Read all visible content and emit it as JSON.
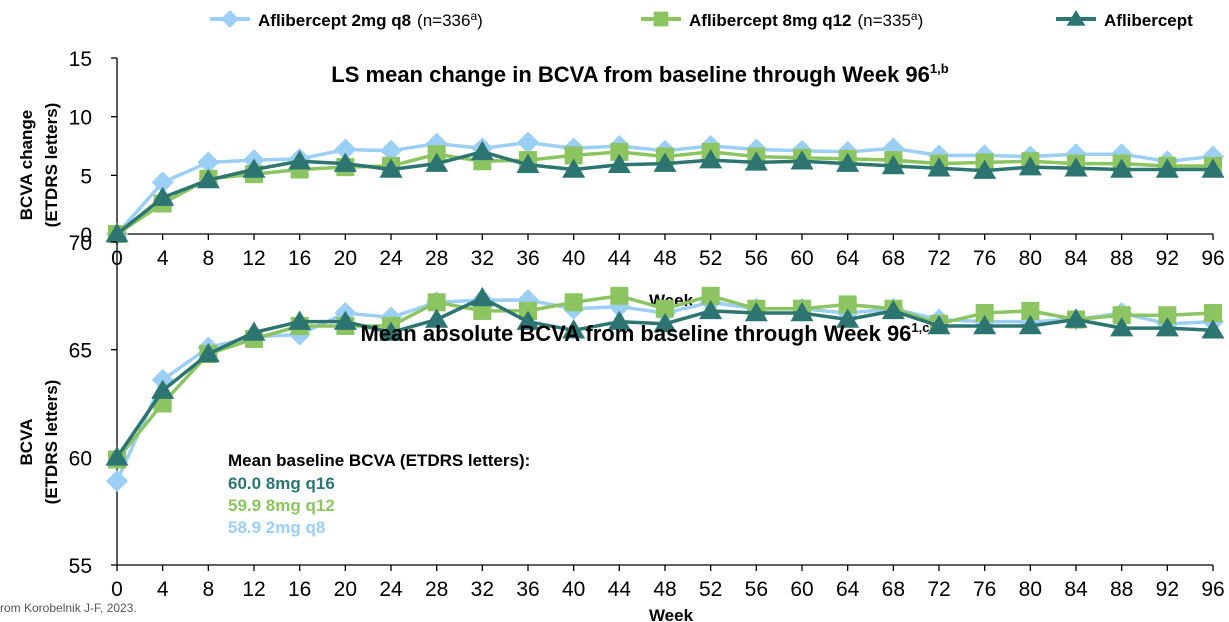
{
  "colors": {
    "q8": "#9CCFF5",
    "q12": "#8DC462",
    "q16": "#2D7570",
    "axis": "#000000",
    "text": "#000000"
  },
  "legend": [
    {
      "label": "Aflibercept 2mg q8",
      "n": "(n=336",
      "sup": "a",
      "close": ")",
      "marker": "diamond",
      "color_key": "q8"
    },
    {
      "label": "Aflibercept 8mg q12",
      "n": "(n=335",
      "sup": "a",
      "close": ")",
      "marker": "square",
      "color_key": "q12"
    },
    {
      "label": "Aflibercept",
      "n": "",
      "sup": "",
      "close": "",
      "marker": "triangle",
      "color_key": "q16"
    }
  ],
  "source_note": "rom Korobelnik J-F, 2023.",
  "annotation": {
    "heading": "Mean baseline BCVA (ETDRS letters):",
    "lines": [
      {
        "text": "60.0 8mg q16",
        "color_key": "q16"
      },
      {
        "text": "59.9 8mg q12",
        "color_key": "q12"
      },
      {
        "text": "58.9 2mg q8",
        "color_key": "q8"
      }
    ]
  },
  "chart_data": [
    {
      "type": "line",
      "title": "LS mean change in BCVA from baseline through Week 96",
      "title_sup": "1,b",
      "xlabel": "Week",
      "ylabel": [
        "BCVA change",
        "(ETDRS letters)"
      ],
      "ylim": [
        0,
        15
      ],
      "yticks": [
        0,
        5,
        10,
        15
      ],
      "grid": false,
      "legend_position": "top",
      "x": [
        0,
        4,
        8,
        12,
        16,
        20,
        24,
        28,
        32,
        36,
        40,
        44,
        48,
        52,
        56,
        60,
        64,
        68,
        72,
        76,
        80,
        84,
        88,
        92,
        96
      ],
      "series": [
        {
          "name": "Aflibercept 2mg q8",
          "color_key": "q8",
          "marker": "diamond",
          "values": [
            0,
            4.4,
            6.1,
            6.3,
            6.4,
            7.2,
            7.1,
            7.7,
            7.3,
            7.8,
            7.3,
            7.5,
            7.1,
            7.5,
            7.2,
            7.1,
            7.0,
            7.3,
            6.7,
            6.7,
            6.6,
            6.8,
            6.8,
            6.2,
            6.6
          ]
        },
        {
          "name": "Aflibercept 8mg q12",
          "color_key": "q12",
          "marker": "square",
          "values": [
            0,
            2.6,
            4.7,
            5.1,
            5.5,
            5.7,
            5.8,
            6.8,
            6.2,
            6.3,
            6.7,
            7.0,
            6.6,
            7.0,
            6.6,
            6.5,
            6.4,
            6.3,
            6.0,
            6.1,
            6.2,
            6.0,
            6.0,
            5.8,
            5.8
          ]
        },
        {
          "name": "Aflibercept 8mg q16",
          "color_key": "q16",
          "marker": "triangle",
          "values": [
            0,
            3.1,
            4.6,
            5.5,
            6.2,
            6.0,
            5.5,
            6.0,
            7.0,
            5.9,
            5.5,
            5.9,
            6.0,
            6.3,
            6.1,
            6.2,
            6.0,
            5.8,
            5.6,
            5.4,
            5.7,
            5.6,
            5.5,
            5.5,
            5.5
          ]
        }
      ]
    },
    {
      "type": "line",
      "title": "Mean absolute BCVA from baseline through Week 96",
      "title_sup": "1,c",
      "xlabel": "Week",
      "ylabel": [
        "BCVA",
        "(ETDRS letters)"
      ],
      "ylim": [
        55,
        70
      ],
      "yticks": [
        55,
        60,
        65,
        70
      ],
      "grid": false,
      "x": [
        0,
        4,
        8,
        12,
        16,
        20,
        24,
        28,
        32,
        36,
        40,
        44,
        48,
        52,
        56,
        60,
        64,
        68,
        72,
        76,
        80,
        84,
        88,
        92,
        96
      ],
      "series": [
        {
          "name": "Aflibercept 2mg q8",
          "color_key": "q8",
          "marker": "diamond",
          "values": [
            58.9,
            63.6,
            65.1,
            65.6,
            65.7,
            66.7,
            66.5,
            67.2,
            67.3,
            67.3,
            66.9,
            67.0,
            66.7,
            67.2,
            66.9,
            66.9,
            66.7,
            66.9,
            66.4,
            66.3,
            66.3,
            66.4,
            66.7,
            66.2,
            66.3
          ]
        },
        {
          "name": "Aflibercept 8mg q12",
          "color_key": "q12",
          "marker": "square",
          "values": [
            59.9,
            62.5,
            64.8,
            65.5,
            66.1,
            66.1,
            66.1,
            67.2,
            66.8,
            66.8,
            67.2,
            67.5,
            66.9,
            67.5,
            66.9,
            66.9,
            67.1,
            66.9,
            66.2,
            66.7,
            66.8,
            66.4,
            66.6,
            66.6,
            66.7
          ]
        },
        {
          "name": "Aflibercept 8mg q16",
          "color_key": "q16",
          "marker": "triangle",
          "values": [
            60.0,
            63.1,
            64.8,
            65.8,
            66.3,
            66.3,
            65.8,
            66.4,
            67.4,
            66.3,
            65.9,
            66.3,
            66.2,
            66.8,
            66.7,
            66.7,
            66.4,
            66.8,
            66.1,
            66.1,
            66.1,
            66.4,
            66.0,
            66.0,
            65.9
          ]
        }
      ]
    }
  ]
}
